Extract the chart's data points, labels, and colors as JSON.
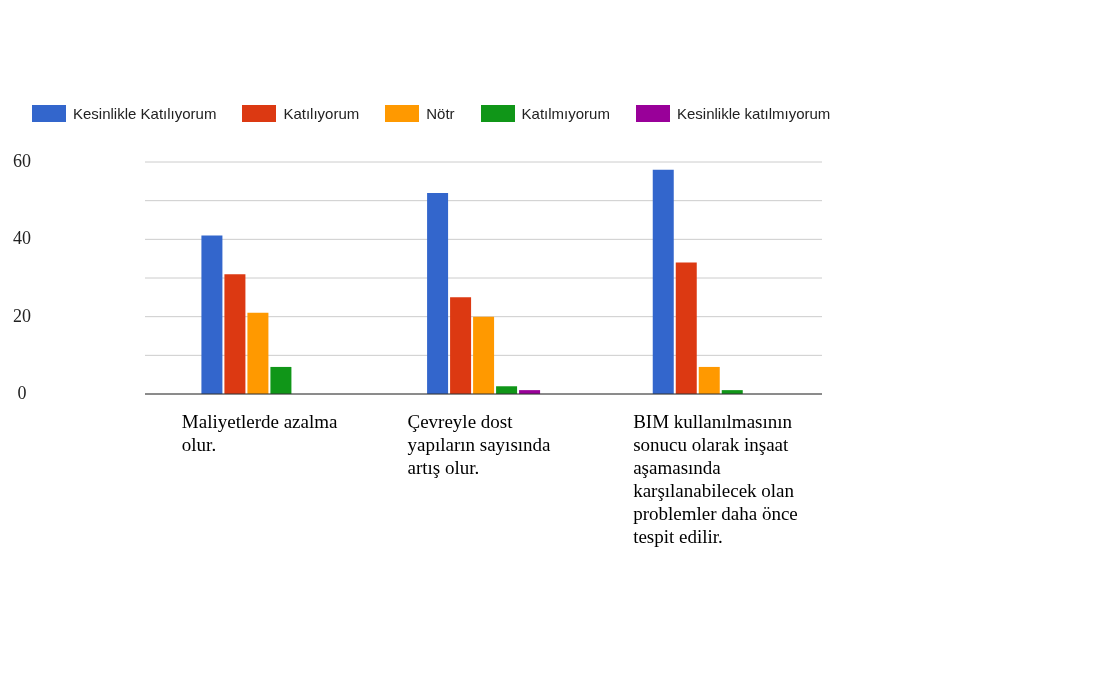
{
  "chart_data": {
    "type": "bar",
    "categories": [
      "Maliyetlerde azalma olur.",
      "Çevreyle dost yapıların sayısında artış olur.",
      "BIM kullanılmasının sonucu olarak inşaat aşamasında karşılanabilecek olan problemler daha önce tespit edilir."
    ],
    "series": [
      {
        "name": "Kesinlikle Katılıyorum",
        "color": "#3366cc",
        "values": [
          41,
          52,
          58
        ]
      },
      {
        "name": "Katılıyorum",
        "color": "#dc3912",
        "values": [
          31,
          25,
          34
        ]
      },
      {
        "name": "Nötr",
        "color": "#ff9900",
        "values": [
          21,
          20,
          7
        ]
      },
      {
        "name": "Katılmıyorum",
        "color": "#109618",
        "values": [
          7,
          2,
          1
        ]
      },
      {
        "name": "Kesinlikle katılmıyorum",
        "color": "#990099",
        "values": [
          0,
          1,
          0
        ]
      }
    ],
    "ylim": [
      0,
      60
    ],
    "yticks": [
      0,
      {
        "value": 10,
        "label": null
      },
      20,
      {
        "value": 30,
        "label": null
      },
      40,
      {
        "value": 50,
        "label": null
      },
      60
    ],
    "grid": "y",
    "legend": "top left"
  }
}
